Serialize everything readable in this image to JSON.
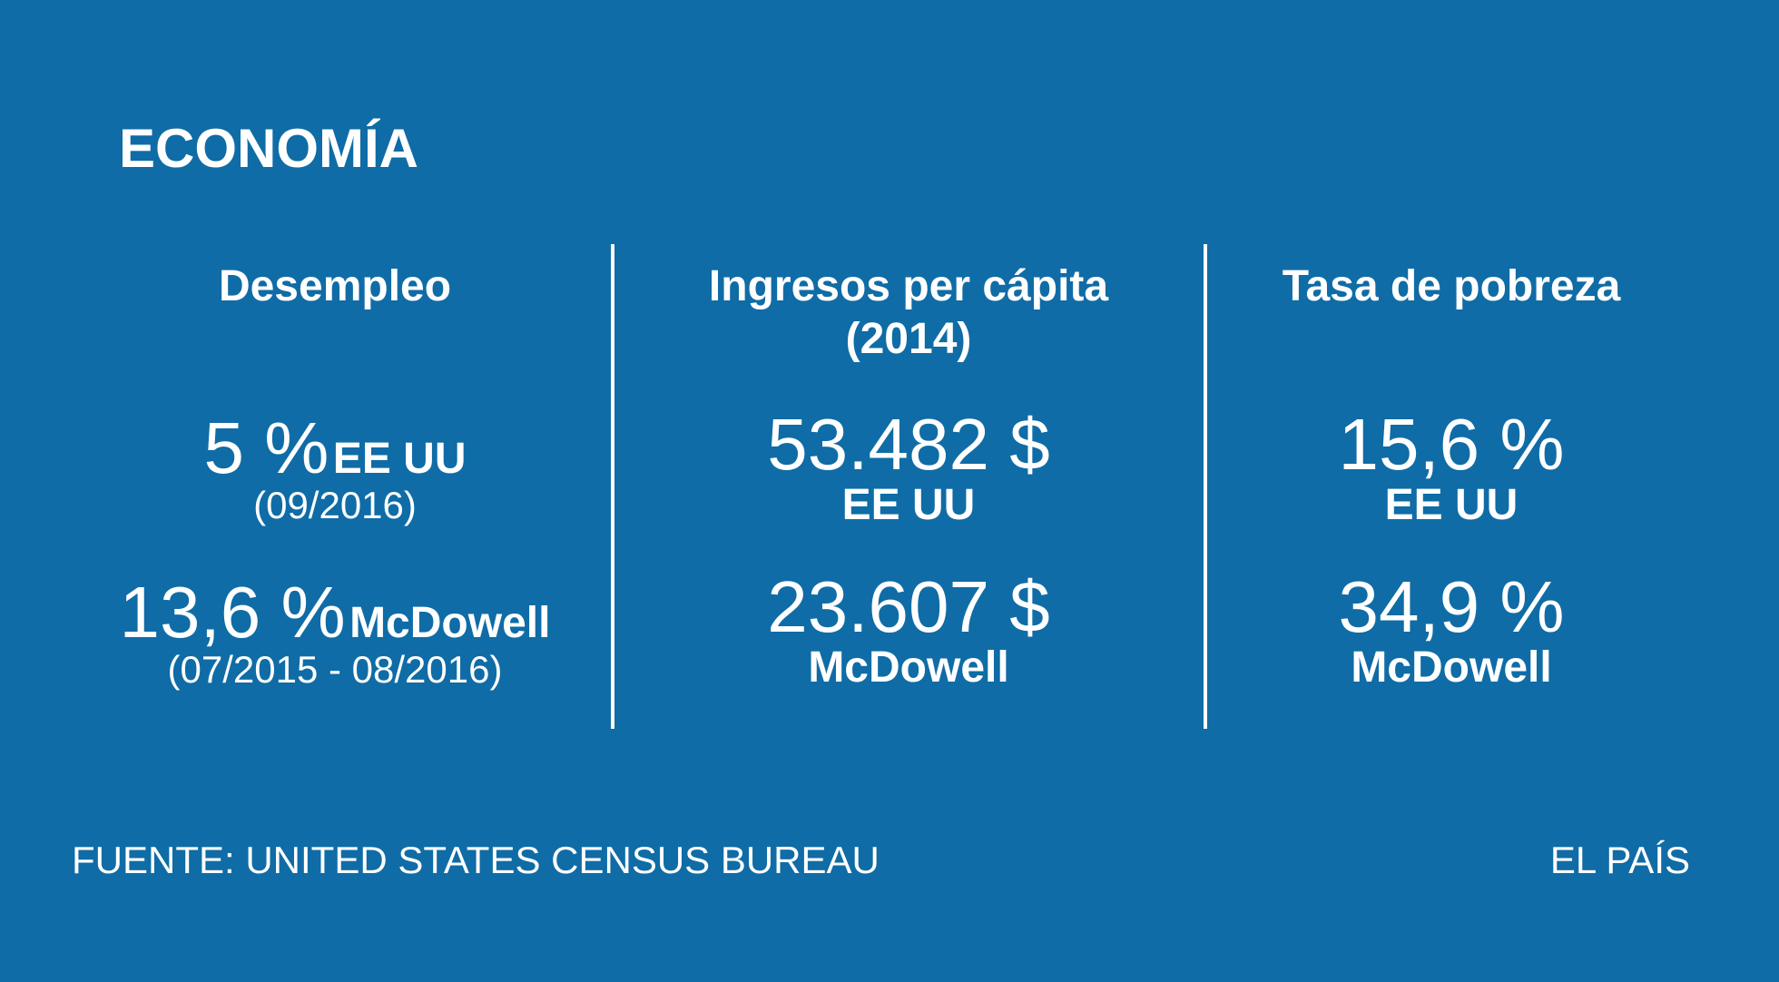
{
  "title": "ECONOMÍA",
  "columns": [
    {
      "heading": "Desempleo",
      "entries": [
        {
          "value": "5 %",
          "place": "EE UU",
          "period": "(09/2016)"
        },
        {
          "value": "13,6 %",
          "place": "McDowell",
          "period": "(07/2015 - 08/2016)"
        }
      ]
    },
    {
      "heading": "Ingresos per cápita (2014)",
      "entries": [
        {
          "value": "53.482 $",
          "place": "EE UU"
        },
        {
          "value": "23.607 $",
          "place": "McDowell"
        }
      ]
    },
    {
      "heading": "Tasa de pobreza",
      "entries": [
        {
          "value": "15,6 %",
          "place": "EE UU"
        },
        {
          "value": "34,9 %",
          "place": "McDowell"
        }
      ]
    }
  ],
  "footer": {
    "source": "FUENTE: UNITED STATES CENSUS BUREAU",
    "brand": "EL PAÍS"
  }
}
